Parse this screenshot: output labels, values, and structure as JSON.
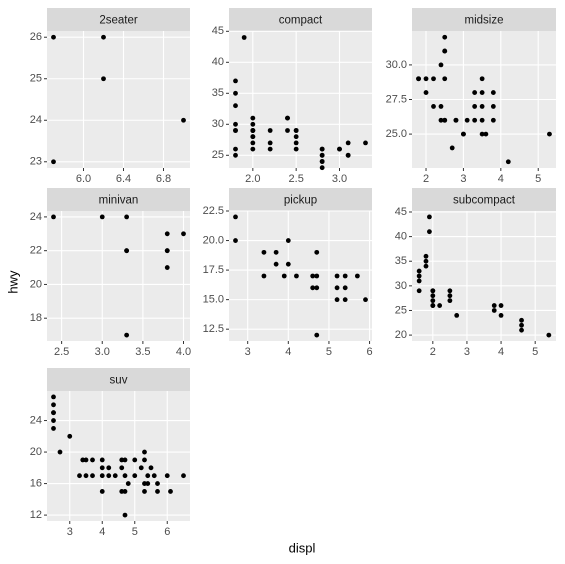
{
  "x_label": "displ",
  "y_label": "hwy",
  "chart_data": [
    {
      "type": "scatter",
      "title": "2seater",
      "color": "#000000",
      "x": [
        5.7,
        5.7,
        6.2,
        6.2,
        7.0
      ],
      "values": [
        26,
        23,
        26,
        25,
        24
      ],
      "xlim": [
        5.635,
        7.065
      ],
      "ylim": [
        22.85,
        26.15
      ],
      "xticks": [
        {
          "value": 6,
          "label": "6.0"
        },
        6.4,
        6.8
      ],
      "yticks": [
        23,
        24,
        25,
        26
      ],
      "grid": true
    },
    {
      "type": "scatter",
      "title": "compact",
      "color": "#000000",
      "x": [
        1.8,
        1.8,
        2.0,
        2.0,
        2.8,
        2.8,
        3.1,
        1.8,
        1.8,
        2.0,
        2.0,
        2.8,
        2.8,
        3.1,
        3.1,
        1.9,
        2.0,
        2.0,
        2.0,
        2.5,
        2.5,
        2.8,
        2.8,
        2.2,
        2.2,
        2.4,
        2.4,
        3.0,
        3.0,
        3.3,
        1.8,
        1.8,
        1.8,
        1.8,
        2.0,
        2.0,
        2.8,
        2.5,
        2.5,
        2.2,
        2.4,
        2.5
      ],
      "values": [
        29,
        29,
        31,
        30,
        26,
        26,
        27,
        26,
        25,
        28,
        27,
        25,
        25,
        25,
        25,
        44,
        29,
        26,
        29,
        29,
        29,
        23,
        24,
        26,
        27,
        31,
        31,
        26,
        26,
        27,
        30,
        33,
        35,
        37,
        28,
        29,
        24,
        27,
        26,
        29,
        29,
        28
      ],
      "xlim": [
        1.725,
        3.375
      ],
      "ylim": [
        22.95,
        45.05
      ],
      "xticks": [
        {
          "value": 2,
          "label": "2.0"
        },
        2.5,
        {
          "value": 3,
          "label": "3.0"
        }
      ],
      "yticks": [
        25,
        30,
        35,
        40,
        45
      ],
      "grid": true
    },
    {
      "type": "scatter",
      "title": "midsize",
      "color": "#000000",
      "x": [
        1.8,
        1.8,
        2.0,
        2.0,
        2.2,
        2.2,
        2.4,
        2.4,
        2.5,
        2.5,
        2.5,
        2.4,
        2.5,
        2.5,
        2.7,
        2.8,
        3.0,
        3.0,
        3.1,
        3.3,
        3.3,
        3.5,
        3.5,
        3.5,
        3.5,
        3.6,
        3.8,
        3.8,
        3.8,
        3.5,
        2.8,
        2.5,
        4.2,
        5.3,
        3.3
      ],
      "values": [
        29,
        29,
        28,
        29,
        29,
        27,
        27,
        30,
        31,
        32,
        26,
        26,
        31,
        29,
        24,
        26,
        25,
        25,
        26,
        28,
        26,
        29,
        28,
        27,
        26,
        25,
        26,
        28,
        27,
        25,
        26,
        26,
        23,
        25,
        27
      ],
      "xlim": [
        1.625,
        5.475
      ],
      "ylim": [
        22.55,
        32.45
      ],
      "xticks": [
        2,
        3,
        4,
        5
      ],
      "yticks": [
        {
          "value": 25,
          "label": "25.0"
        },
        27.5,
        {
          "value": 30,
          "label": "30.0"
        }
      ],
      "grid": true
    },
    {
      "type": "scatter",
      "title": "minivan",
      "color": "#000000",
      "x": [
        2.4,
        3.0,
        3.3,
        3.3,
        3.3,
        3.3,
        3.8,
        3.8,
        3.8,
        4.0,
        3.8
      ],
      "values": [
        24,
        24,
        22,
        22,
        24,
        17,
        22,
        21,
        23,
        23,
        22
      ],
      "xlim": [
        2.32,
        4.08
      ],
      "ylim": [
        16.65,
        24.35
      ],
      "xticks": [
        2.5,
        {
          "value": 3,
          "label": "3.0"
        },
        3.5,
        {
          "value": 4,
          "label": "4.0"
        }
      ],
      "yticks": [
        18,
        20,
        22,
        24
      ],
      "grid": true
    },
    {
      "type": "scatter",
      "title": "pickup",
      "color": "#000000",
      "x": [
        2.7,
        2.7,
        3.4,
        3.4,
        3.7,
        3.7,
        3.9,
        4.0,
        4.0,
        4.2,
        4.6,
        4.7,
        4.7,
        4.7,
        4.7,
        5.2,
        5.2,
        5.4,
        5.4,
        5.7,
        5.9,
        4.6,
        5.2,
        5.4
      ],
      "values": [
        20,
        22,
        17,
        19,
        19,
        18,
        17,
        20,
        18,
        17,
        17,
        17,
        16,
        12,
        19,
        15,
        17,
        17,
        15,
        17,
        15,
        16,
        16,
        16
      ],
      "xlim": [
        2.54,
        6.06
      ],
      "ylim": [
        11.5,
        22.5
      ],
      "xticks": [
        3,
        4,
        5,
        6
      ],
      "yticks": [
        {
          "value": 12.5,
          "label": "12.5"
        },
        {
          "value": 15,
          "label": "15.0"
        },
        {
          "value": 17.5,
          "label": "17.5"
        },
        {
          "value": 20,
          "label": "20.0"
        },
        {
          "value": 22.5,
          "label": "22.5"
        }
      ],
      "grid": true
    },
    {
      "type": "scatter",
      "title": "subcompact",
      "color": "#000000",
      "x": [
        3.8,
        3.8,
        4.0,
        4.0,
        4.6,
        4.6,
        4.6,
        5.4,
        1.6,
        1.6,
        1.6,
        1.6,
        1.8,
        1.8,
        1.8,
        2.0,
        2.0,
        2.0,
        2.7,
        1.9,
        1.9,
        2.0,
        2.0,
        2.5,
        2.5,
        2.5,
        2.2,
        2.0
      ],
      "values": [
        26,
        25,
        26,
        24,
        23,
        22,
        21,
        20,
        33,
        32,
        29,
        31,
        34,
        36,
        35,
        29,
        26,
        27,
        24,
        44,
        41,
        28,
        26,
        28,
        29,
        27,
        26,
        29
      ],
      "xlim": [
        1.39,
        5.61
      ],
      "ylim": [
        18.8,
        45.2
      ],
      "xticks": [
        2,
        3,
        4,
        5
      ],
      "yticks": [
        20,
        25,
        30,
        35,
        40,
        45
      ],
      "grid": true
    },
    {
      "type": "scatter",
      "title": "suv",
      "color": "#000000",
      "x": [
        2.5,
        2.5,
        2.5,
        2.5,
        2.5,
        2.5,
        2.7,
        3.0,
        3.3,
        3.4,
        3.5,
        3.7,
        3.7,
        4.0,
        4.0,
        4.0,
        4.2,
        4.2,
        4.4,
        4.6,
        4.6,
        4.7,
        4.7,
        4.7,
        4.7,
        4.8,
        5.0,
        5.2,
        5.3,
        5.3,
        5.3,
        5.4,
        5.4,
        5.5,
        5.6,
        5.7,
        5.7,
        6.0,
        6.1,
        6.5,
        4.0,
        4.6,
        5.3,
        3.5,
        5.0
      ],
      "values": [
        27,
        26,
        25,
        24,
        23,
        25,
        20,
        22,
        17,
        19,
        19,
        17,
        19,
        15,
        18,
        17,
        18,
        17,
        17,
        15,
        19,
        17,
        15,
        12,
        19,
        16,
        17,
        18,
        20,
        15,
        19,
        16,
        17,
        18,
        17,
        16,
        15,
        17,
        15,
        17,
        19,
        18,
        16,
        17,
        19
      ],
      "xlim": [
        2.3,
        6.7
      ],
      "ylim": [
        11.25,
        27.75
      ],
      "xticks": [
        3,
        4,
        5,
        6
      ],
      "yticks": [
        12,
        16,
        20,
        24
      ],
      "grid": true
    }
  ]
}
